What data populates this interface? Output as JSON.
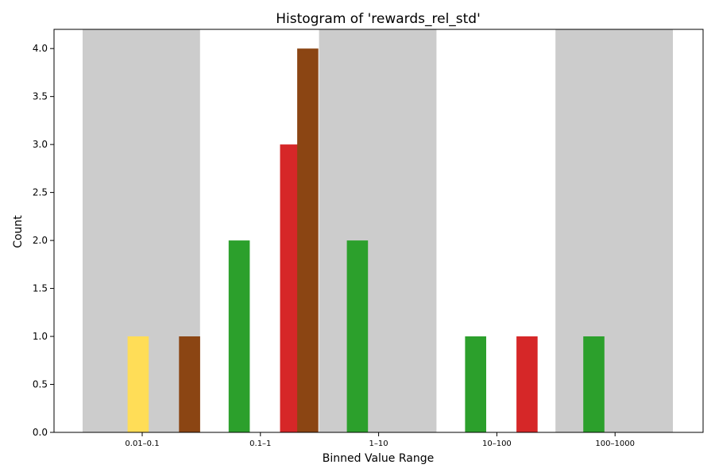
{
  "chart_data": {
    "type": "bar",
    "title": "Histogram of 'rewards_rel_std'",
    "xlabel": "Binned Value Range",
    "ylabel": "Count",
    "ylim": [
      0,
      4.2
    ],
    "yticks": [
      "0.0",
      "0.5",
      "1.0",
      "1.5",
      "2.0",
      "2.5",
      "3.0",
      "3.5",
      "4.0"
    ],
    "categories": [
      "0.01–0.1",
      "0.1–1",
      "1–10",
      "10–100",
      "100–1000"
    ],
    "group_shading": [
      "#cccccc",
      "#ffffff",
      "#cccccc",
      "#ffffff",
      "#cccccc"
    ],
    "slots_per_group": 7,
    "bars": [
      {
        "category": "0.01–0.1",
        "slot": 1,
        "value": 1,
        "color": "#ffdd57"
      },
      {
        "category": "0.01–0.1",
        "slot": 4,
        "value": 1,
        "color": "#8b4513"
      },
      {
        "category": "0.1–1",
        "slot": 0,
        "value": 2,
        "color": "#2ca02c"
      },
      {
        "category": "0.1–1",
        "slot": 3,
        "value": 3,
        "color": "#d62728"
      },
      {
        "category": "0.1–1",
        "slot": 4,
        "value": 4,
        "color": "#8b4513"
      },
      {
        "category": "1–10",
        "slot": 0,
        "value": 2,
        "color": "#2ca02c"
      },
      {
        "category": "10–100",
        "slot": 0,
        "value": 1,
        "color": "#2ca02c"
      },
      {
        "category": "10–100",
        "slot": 3,
        "value": 1,
        "color": "#d62728"
      },
      {
        "category": "100–1000",
        "slot": 0,
        "value": 1,
        "color": "#2ca02c"
      }
    ],
    "grid": false,
    "legend": "none"
  }
}
